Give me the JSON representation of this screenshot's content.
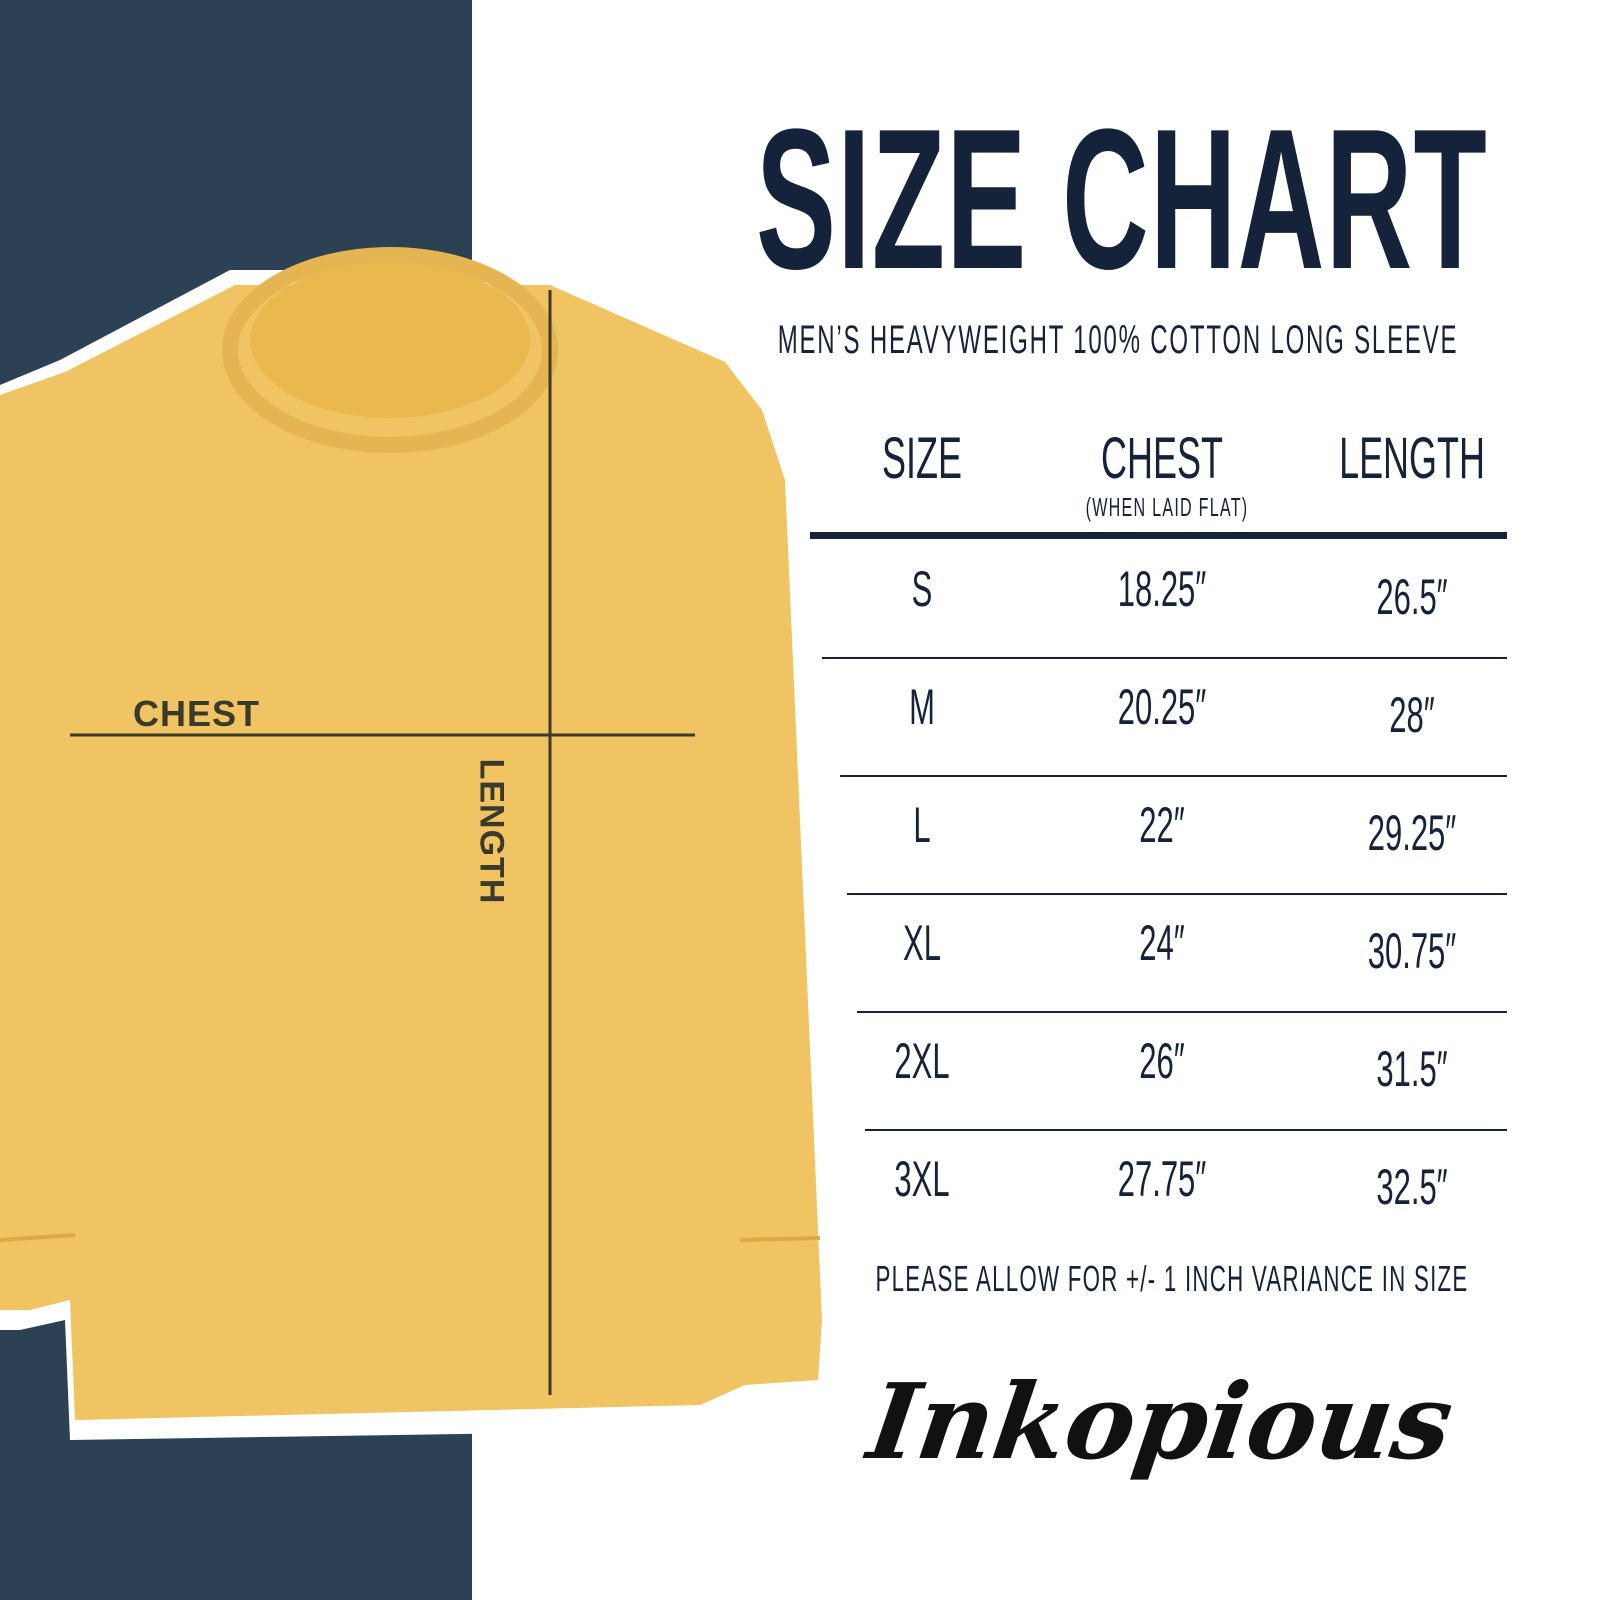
{
  "title": "SIZE CHART",
  "subtitle": "MEN’S HEAVYWEIGHT 100% COTTON LONG SLEEVE",
  "diagram": {
    "chest_label": "CHEST",
    "length_label": "LENGTH",
    "shirt_color": "#f0c463"
  },
  "table": {
    "headers": {
      "size": "SIZE",
      "chest": "CHEST",
      "chest_note": "(WHEN LAID FLAT)",
      "length": "LENGTH"
    },
    "rows": [
      {
        "size": "S",
        "chest": "18.25″",
        "length": "26.5″"
      },
      {
        "size": "M",
        "chest": "20.25″",
        "length": "28″"
      },
      {
        "size": "L",
        "chest": "22″",
        "length": "29.25″"
      },
      {
        "size": "XL",
        "chest": "24″",
        "length": "30.75″"
      },
      {
        "size": "2XL",
        "chest": "26″",
        "length": "31.5″"
      },
      {
        "size": "3XL",
        "chest": "27.75″",
        "length": "32.5″"
      }
    ]
  },
  "footnote": "PLEASE ALLOW FOR +/- 1 INCH VARIANCE IN SIZE",
  "brand": {
    "logo_text": "Inkopious"
  },
  "colors": {
    "navy": "#2d4155",
    "text": "#14233a",
    "shirt": "#f0c463"
  }
}
